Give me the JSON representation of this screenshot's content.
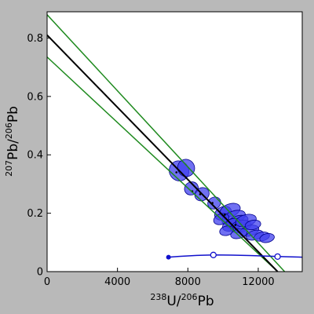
{
  "chart_data": {
    "type": "scatter",
    "xlabel": {
      "mass_a": "238",
      "elem_a": "U",
      "sep": "/",
      "mass_b": "206",
      "elem_b": "Pb"
    },
    "ylabel": {
      "mass_a": "207",
      "elem_a": "Pb",
      "sep": "/",
      "mass_b": "206",
      "elem_b": "Pb"
    },
    "xlim": [
      0,
      14500
    ],
    "ylim": [
      0,
      0.89
    ],
    "x_ticks": [
      0,
      4000,
      8000,
      12000
    ],
    "x_tick_labels": [
      "0",
      "4000",
      "8000",
      "12000"
    ],
    "y_ticks": [
      0,
      0.2,
      0.4,
      0.6,
      0.8
    ],
    "y_tick_labels": [
      "0",
      "0.2",
      "0.4",
      "0.6",
      "0.8"
    ],
    "grid": false,
    "colors": {
      "background": "#b9b9b9",
      "plot_area": "#ffffff",
      "regression_line": "#000000",
      "error_envelope": "#1e8a1e",
      "ellipse_fill": "#4040ee",
      "ellipse_stroke": "#00008b",
      "concordia": "#1010cc"
    },
    "regression_line": {
      "x": [
        0,
        13100
      ],
      "y": [
        0.81,
        0
      ]
    },
    "error_envelope": [
      {
        "x": [
          0,
          13500
        ],
        "y": [
          0.88,
          0
        ]
      },
      {
        "x": [
          0,
          13100
        ],
        "y": [
          0.735,
          0
        ]
      }
    ],
    "ellipses": [
      {
        "x": 7500,
        "y": 0.345,
        "rx": 550,
        "ry": 0.035,
        "rot": -35
      },
      {
        "x": 7900,
        "y": 0.355,
        "rx": 480,
        "ry": 0.03,
        "rot": -30
      },
      {
        "x": 8200,
        "y": 0.285,
        "rx": 400,
        "ry": 0.022,
        "rot": -30
      },
      {
        "x": 8800,
        "y": 0.265,
        "rx": 420,
        "ry": 0.022,
        "rot": -30
      },
      {
        "x": 9500,
        "y": 0.235,
        "rx": 380,
        "ry": 0.02,
        "rot": -30
      },
      {
        "x": 10000,
        "y": 0.2,
        "rx": 500,
        "ry": 0.022,
        "rot": -25
      },
      {
        "x": 10400,
        "y": 0.21,
        "rx": 600,
        "ry": 0.022,
        "rot": -20
      },
      {
        "x": 10600,
        "y": 0.185,
        "rx": 700,
        "ry": 0.022,
        "rot": -20
      },
      {
        "x": 10800,
        "y": 0.17,
        "rx": 650,
        "ry": 0.02,
        "rot": -20
      },
      {
        "x": 10500,
        "y": 0.16,
        "rx": 550,
        "ry": 0.02,
        "rot": -20
      },
      {
        "x": 11000,
        "y": 0.155,
        "rx": 600,
        "ry": 0.02,
        "rot": -15
      },
      {
        "x": 11300,
        "y": 0.175,
        "rx": 600,
        "ry": 0.02,
        "rot": -15
      },
      {
        "x": 11500,
        "y": 0.14,
        "rx": 550,
        "ry": 0.018,
        "rot": -15
      },
      {
        "x": 11800,
        "y": 0.125,
        "rx": 500,
        "ry": 0.016,
        "rot": -15
      },
      {
        "x": 12200,
        "y": 0.12,
        "rx": 450,
        "ry": 0.015,
        "rot": -12
      },
      {
        "x": 12500,
        "y": 0.115,
        "rx": 420,
        "ry": 0.015,
        "rot": -12
      },
      {
        "x": 10200,
        "y": 0.14,
        "rx": 400,
        "ry": 0.016,
        "rot": -15
      },
      {
        "x": 10900,
        "y": 0.13,
        "rx": 480,
        "ry": 0.016,
        "rot": -15
      },
      {
        "x": 9900,
        "y": 0.18,
        "rx": 450,
        "ry": 0.018,
        "rot": -20
      },
      {
        "x": 11700,
        "y": 0.16,
        "rx": 450,
        "ry": 0.016,
        "rot": -12
      }
    ],
    "concordia": {
      "x": [
        6900,
        7500,
        8500,
        9500,
        10500,
        11500,
        12500,
        13500,
        14500
      ],
      "y": [
        0.0495,
        0.052,
        0.0555,
        0.057,
        0.0565,
        0.055,
        0.053,
        0.051,
        0.0495
      ],
      "start_point": {
        "x": 6900,
        "y": 0.0495
      },
      "markers": [
        {
          "x": 9450,
          "y": 0.057
        },
        {
          "x": 13100,
          "y": 0.0515
        }
      ]
    },
    "small_dots": [
      {
        "x": 7350,
        "y": 0.34
      },
      {
        "x": 8250,
        "y": 0.275
      },
      {
        "x": 8700,
        "y": 0.265
      },
      {
        "x": 9400,
        "y": 0.235
      },
      {
        "x": 10100,
        "y": 0.195
      },
      {
        "x": 10700,
        "y": 0.16
      }
    ]
  }
}
